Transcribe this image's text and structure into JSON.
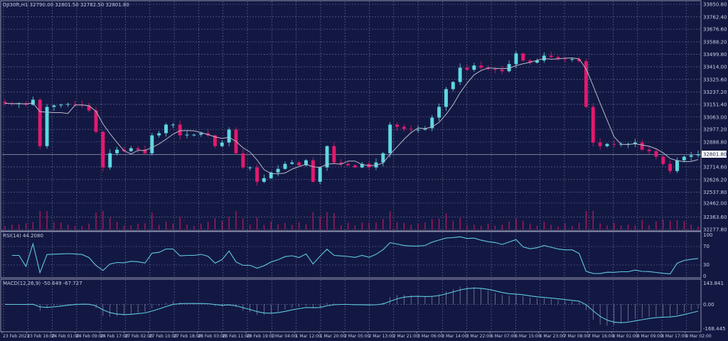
{
  "header": {
    "symbol_info": "DJI30ft,H1  32790.00 32801.50 32782.50 32801.80"
  },
  "colors": {
    "background": "#131843",
    "bull": "#5fd8e0",
    "bear": "#e3196d",
    "ma": "#b9b9c8",
    "indicator": "#5fc9dc",
    "volume": "#c0185c",
    "grid": "#6a7096"
  },
  "chart_data": [
    {
      "type": "candlestick",
      "panel": "main",
      "timeframe": "H1",
      "ylim": [
        32277.8,
        33850.8
      ],
      "price_ticks": [
        33850.8,
        33762.4,
        33676.6,
        33588.2,
        33499.8,
        33414.0,
        33325.6,
        33237.2,
        33151.4,
        33063.0,
        32977.2,
        32888.8,
        32714.6,
        32626.2,
        32537.8,
        32462.0,
        32363.6,
        32277.8
      ],
      "current_price": "32801.80",
      "x_ticks": [
        "23 Feb 2023",
        "23 Feb 16:00",
        "24 Feb 01:00",
        "24 Feb 09:00",
        "24 Feb 17:00",
        "27 Feb 02:00",
        "27 Feb 10:00",
        "27 Feb 18:00",
        "28 Feb 03:00",
        "28 Feb 11:00",
        "28 Feb 19:00",
        "1 Mar 04:00",
        "1 Mar 12:00",
        "1 Mar 20:00",
        "2 Mar 05:00",
        "2 Mar 13:00",
        "2 Mar 21:00",
        "3 Mar 06:00",
        "3 Mar 14:00",
        "3 Mar 22:00",
        "6 Mar 07:00",
        "6 Mar 15:00",
        "6 Mar 23:00",
        "7 Mar 08:00",
        "7 Mar 16:00",
        "8 Mar 01:00",
        "8 Mar 09:00",
        "8 Mar 17:00",
        "9 Mar 02:00"
      ],
      "closes": [
        33159,
        33154,
        33159,
        33149,
        33184,
        32860,
        33134,
        33144,
        33149,
        33154,
        33149,
        33144,
        33109,
        32960,
        32711,
        32810,
        32835,
        32825,
        32845,
        32835,
        32810,
        32935,
        32950,
        33010,
        33010,
        32935,
        32940,
        32940,
        32950,
        32935,
        32860,
        32885,
        32975,
        32810,
        32711,
        32711,
        32611,
        32636,
        32676,
        32701,
        32736,
        32746,
        32726,
        32761,
        32611,
        32711,
        32860,
        32746,
        32736,
        32726,
        32711,
        32736,
        32711,
        32746,
        32810,
        33010,
        32995,
        32980,
        32975,
        32975,
        32985,
        33059,
        33134,
        33258,
        33308,
        33408,
        33393,
        33423,
        33408,
        33398,
        33393,
        33383,
        33433,
        33507,
        33458,
        33443,
        33458,
        33492,
        33482,
        33472,
        33468,
        33468,
        33453,
        33134,
        32885,
        32860,
        32875,
        32870,
        32875,
        32875,
        32885,
        32835,
        32825,
        32786,
        32736,
        32686,
        32761,
        32786,
        32796,
        32801.8
      ],
      "overlay": "moving average"
    },
    {
      "type": "line",
      "panel": "rsi",
      "label": "RSI(14) 44.2080",
      "ylim": [
        0,
        100
      ],
      "levels": [
        "100",
        "70",
        "30",
        "0"
      ]
    },
    {
      "type": "line+histogram",
      "panel": "macd",
      "label": "MACD(12,26,9) -50.649 -67.727",
      "ylim": [
        -168.445,
        143.841
      ],
      "levels": [
        "143.841",
        "0.00",
        "-168.445"
      ]
    }
  ]
}
